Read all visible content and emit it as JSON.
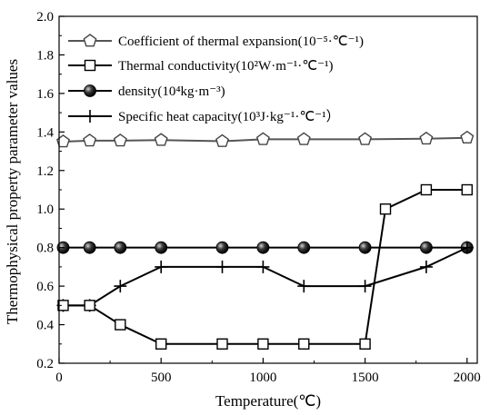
{
  "chart_data": {
    "type": "line",
    "xlabel": "Temperature(℃)",
    "ylabel": "Thermophysical property parameter values",
    "xlim": [
      0,
      2050
    ],
    "ylim": [
      0.2,
      2.0
    ],
    "x_ticks": [
      "0",
      "500",
      "1000",
      "1500",
      "2000"
    ],
    "y_ticks": [
      "0.2",
      "0.4",
      "0.6",
      "0.8",
      "1.0",
      "1.2",
      "1.4",
      "1.6",
      "1.8",
      "2.0"
    ],
    "grid": false,
    "legend_position": "top-left",
    "series": [
      {
        "name": "Coefficient of thermal expansion(10⁻⁵·℃⁻¹)",
        "marker": "pentagon-open",
        "color": "#555555",
        "x": [
          20,
          150,
          300,
          500,
          800,
          1000,
          1200,
          1500,
          1800,
          2000
        ],
        "y": [
          1.35,
          1.355,
          1.355,
          1.358,
          1.352,
          1.362,
          1.362,
          1.362,
          1.365,
          1.37
        ]
      },
      {
        "name": "Thermal conductivity(10²W·m⁻¹·℃⁻¹)",
        "marker": "square-open",
        "color": "#000000",
        "x": [
          20,
          150,
          300,
          500,
          800,
          1000,
          1200,
          1500,
          1600,
          1800,
          2000
        ],
        "y": [
          0.5,
          0.5,
          0.4,
          0.3,
          0.3,
          0.3,
          0.3,
          0.3,
          1.0,
          1.1,
          1.1
        ]
      },
      {
        "name": "density(10⁴kg·m⁻³)",
        "marker": "sphere-filled",
        "color": "#000000",
        "x": [
          20,
          150,
          300,
          500,
          800,
          1000,
          1200,
          1500,
          1800,
          2000
        ],
        "y": [
          0.8,
          0.8,
          0.8,
          0.8,
          0.8,
          0.8,
          0.8,
          0.8,
          0.8,
          0.8
        ]
      },
      {
        "name": "Specific heat capacity(10³J·kg⁻¹·℃⁻¹）",
        "marker": "plus",
        "color": "#000000",
        "x": [
          20,
          150,
          300,
          500,
          800,
          1000,
          1200,
          1500,
          1800,
          2000
        ],
        "y": [
          0.5,
          0.5,
          0.6,
          0.7,
          0.7,
          0.7,
          0.6,
          0.6,
          0.7,
          0.8
        ]
      }
    ]
  }
}
